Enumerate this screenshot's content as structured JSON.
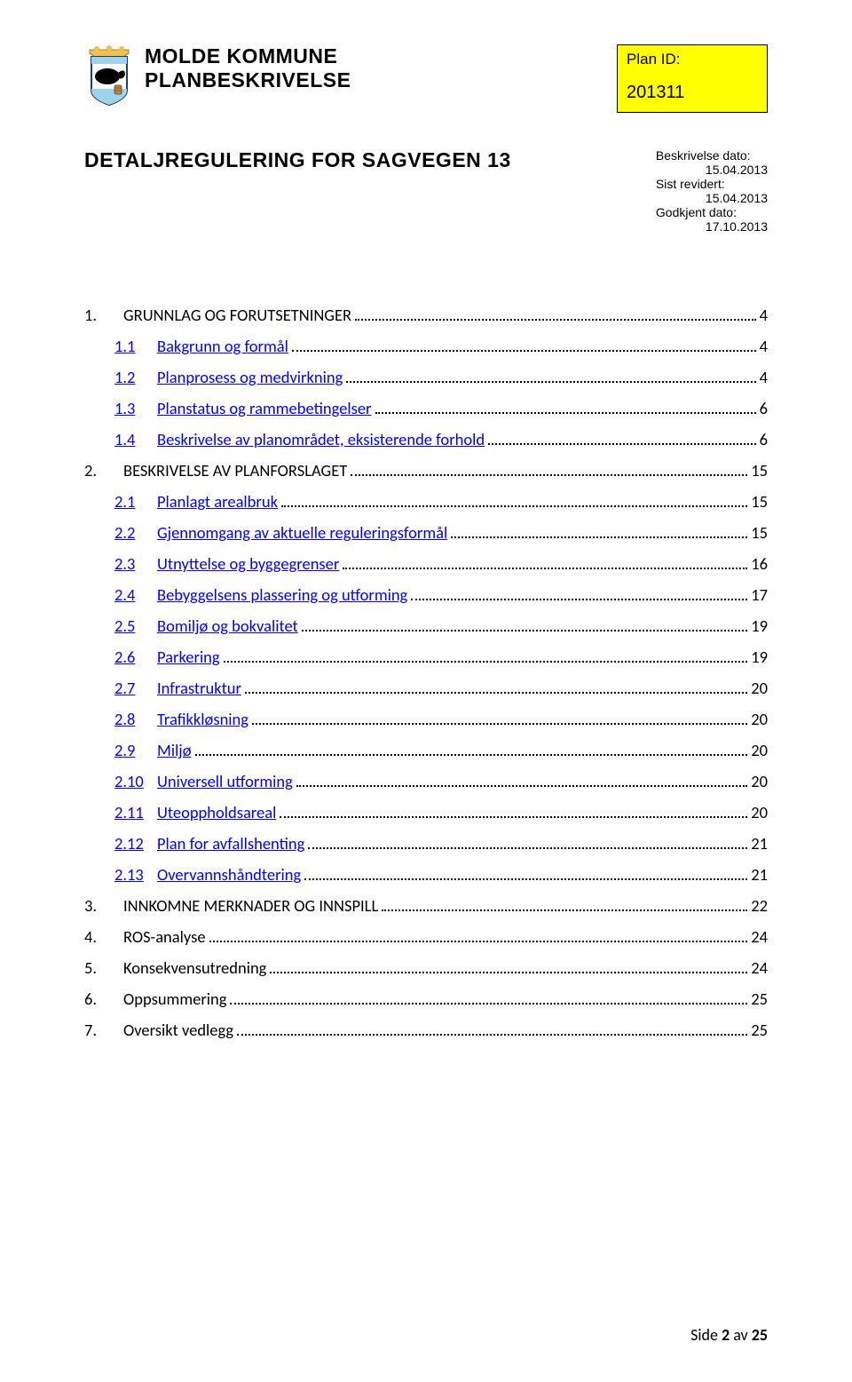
{
  "header": {
    "kommune": "MOLDE KOMMUNE",
    "planbeskrivelse": "PLANBESKRIVELSE",
    "plan_id_label": "Plan ID:",
    "plan_id_value": "201311",
    "crest": {
      "shield_fill": "#ffffff",
      "shield_stroke": "#1a3e6f",
      "crown_fill": "#f3c14b",
      "top_band_fill": "#9fd3ea",
      "bottom_band_fill": "#9fd3ea",
      "whale_fill": "#000000",
      "barrel_fill": "#b98b4a"
    }
  },
  "title": "DETALJREGULERING FOR SAGVEGEN 13",
  "dates": {
    "beskrivelse_label": "Beskrivelse dato:",
    "beskrivelse_value": "15.04.2013",
    "revidert_label": "Sist revidert:",
    "revidert_value": "15.04.2013",
    "godkjent_label": "Godkjent dato:",
    "godkjent_value": "17.10.2013"
  },
  "toc": [
    {
      "level": 1,
      "num": "1.",
      "title": "GRUNNLAG OG FORUTSETNINGER",
      "page": "4",
      "link": false
    },
    {
      "level": 2,
      "num": "1.1",
      "title": "Bakgrunn og formål",
      "page": "4",
      "link": true
    },
    {
      "level": 2,
      "num": "1.2",
      "title": "Planprosess og medvirkning",
      "page": "4",
      "link": true
    },
    {
      "level": 2,
      "num": "1.3",
      "title": "Planstatus og rammebetingelser",
      "page": "6",
      "link": true
    },
    {
      "level": 2,
      "num": "1.4",
      "title": "Beskrivelse av planområdet, eksisterende forhold",
      "page": "6",
      "link": true
    },
    {
      "level": 1,
      "num": "2.",
      "title": "BESKRIVELSE AV PLANFORSLAGET",
      "page": "15",
      "link": false
    },
    {
      "level": 2,
      "num": "2.1",
      "title": "Planlagt arealbruk",
      "page": "15",
      "link": true
    },
    {
      "level": 2,
      "num": "2.2",
      "title": "Gjennomgang av aktuelle reguleringsformål",
      "page": "15",
      "link": true
    },
    {
      "level": 2,
      "num": "2.3",
      "title": "Utnyttelse og byggegrenser",
      "page": "16",
      "link": true
    },
    {
      "level": 2,
      "num": "2.4",
      "title": "Bebyggelsens plassering og utforming",
      "page": "17",
      "link": true
    },
    {
      "level": 2,
      "num": "2.5",
      "title": "Bomiljø og bokvalitet",
      "page": "19",
      "link": true
    },
    {
      "level": 2,
      "num": "2.6",
      "title": "Parkering",
      "page": "19",
      "link": true
    },
    {
      "level": 2,
      "num": "2.7",
      "title": "Infrastruktur",
      "page": "20",
      "link": true
    },
    {
      "level": 2,
      "num": "2.8",
      "title": "Trafikkløsning",
      "page": "20",
      "link": true
    },
    {
      "level": 2,
      "num": "2.9",
      "title": "Miljø",
      "page": "20",
      "link": true
    },
    {
      "level": 2,
      "num": "2.10",
      "title": "Universell utforming",
      "page": "20",
      "link": true
    },
    {
      "level": 2,
      "num": "2.11",
      "title": "Uteoppholdsareal",
      "page": "20",
      "link": true
    },
    {
      "level": 2,
      "num": "2.12",
      "title": "Plan for avfallshenting",
      "page": "21",
      "link": true
    },
    {
      "level": 2,
      "num": "2.13",
      "title": "Overvannshåndtering",
      "page": "21",
      "link": true
    },
    {
      "level": 1,
      "num": "3.",
      "title": "INNKOMNE MERKNADER OG INNSPILL",
      "page": "22",
      "link": false
    },
    {
      "level": 1,
      "num": "4.",
      "title": "ROS-analyse",
      "page": "24",
      "link": false
    },
    {
      "level": 1,
      "num": "5.",
      "title": "Konsekvensutredning",
      "page": "24",
      "link": false
    },
    {
      "level": 1,
      "num": "6.",
      "title": "Oppsummering",
      "page": "25",
      "link": false
    },
    {
      "level": 1,
      "num": "7.",
      "title": "Oversikt vedlegg",
      "page": "25",
      "link": false
    }
  ],
  "footer": {
    "prefix": "Side ",
    "current": "2",
    "middle": " av ",
    "total": "25"
  },
  "colors": {
    "link": "#0000ff",
    "plan_id_bg": "#ffff00",
    "text": "#000000",
    "page_bg": "#ffffff"
  }
}
